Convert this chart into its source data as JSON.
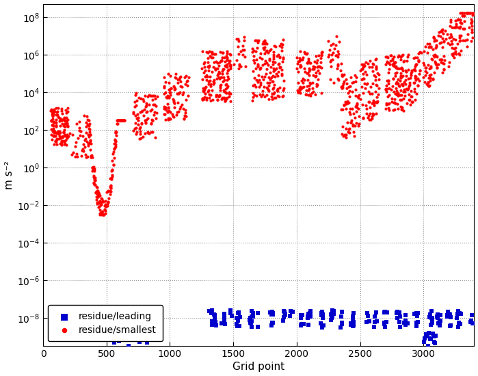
{
  "title": "",
  "xlabel": "Grid point",
  "ylabel": "m s⁻²",
  "xlim": [
    0,
    3400
  ],
  "background_color": "#ffffff",
  "grid_color": "#888888",
  "red_color": "#ff0000",
  "blue_color": "#0000cc",
  "legend_labels": [
    "residue/smallest",
    "residue/leading"
  ],
  "seed": 42,
  "ytick_locs": [
    -8,
    -6,
    -4,
    -2,
    0,
    2,
    4,
    6,
    8
  ],
  "ylim_low": -9.5,
  "ylim_high": 8.7
}
